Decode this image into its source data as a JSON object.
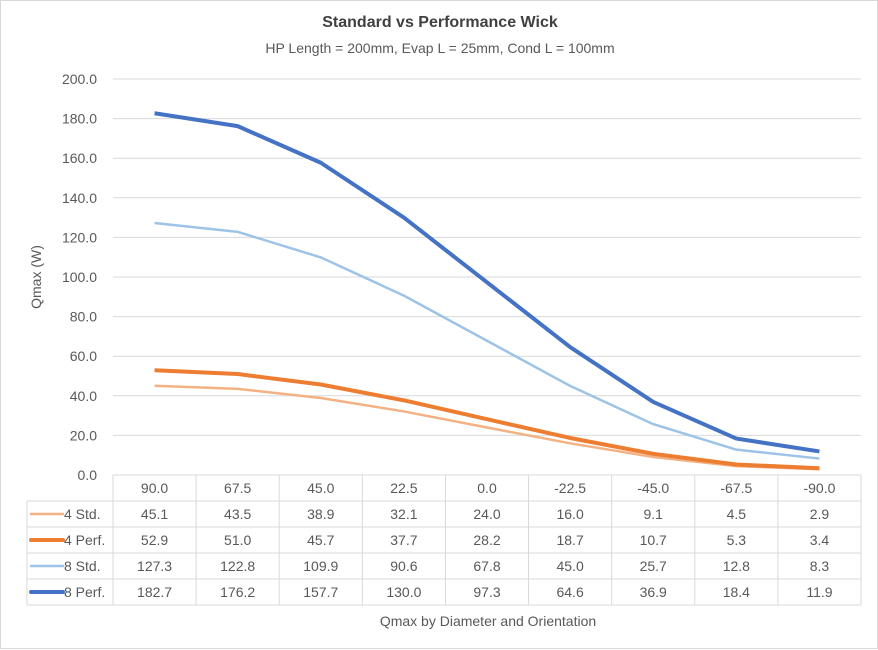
{
  "chart_data": {
    "type": "line",
    "title": "Standard vs Performance Wick",
    "subtitle": "HP Length = 200mm, Evap L = 25mm, Cond L = 100mm",
    "xlabel": "Qmax by Diameter and Orientation",
    "ylabel": "Qmax (W)",
    "ylim": [
      0,
      200
    ],
    "yticks": [
      "0.0",
      "20.0",
      "40.0",
      "60.0",
      "80.0",
      "100.0",
      "120.0",
      "140.0",
      "160.0",
      "180.0",
      "200.0"
    ],
    "grid": true,
    "legend": "data-table",
    "categories": [
      "90.0",
      "67.5",
      "45.0",
      "22.5",
      "0.0",
      "-22.5",
      "-45.0",
      "-67.5",
      "-90.0"
    ],
    "series": [
      {
        "name": "4 Std.",
        "color": "#f4b183",
        "width": 2.5,
        "values": [
          45.1,
          43.5,
          38.9,
          32.1,
          24.0,
          16.0,
          9.1,
          4.5,
          2.9
        ]
      },
      {
        "name": "4 Perf.",
        "color": "#ed7d31",
        "width": 4,
        "values": [
          52.9,
          51.0,
          45.7,
          37.7,
          28.2,
          18.7,
          10.7,
          5.3,
          3.4
        ]
      },
      {
        "name": "8 Std.",
        "color": "#9dc3e6",
        "width": 2.5,
        "values": [
          127.3,
          122.8,
          109.9,
          90.6,
          67.8,
          45.0,
          25.7,
          12.8,
          8.3
        ]
      },
      {
        "name": "8 Perf.",
        "color": "#4472c4",
        "width": 4,
        "values": [
          182.7,
          176.2,
          157.7,
          130.0,
          97.3,
          64.6,
          36.9,
          18.4,
          11.9
        ]
      }
    ]
  }
}
